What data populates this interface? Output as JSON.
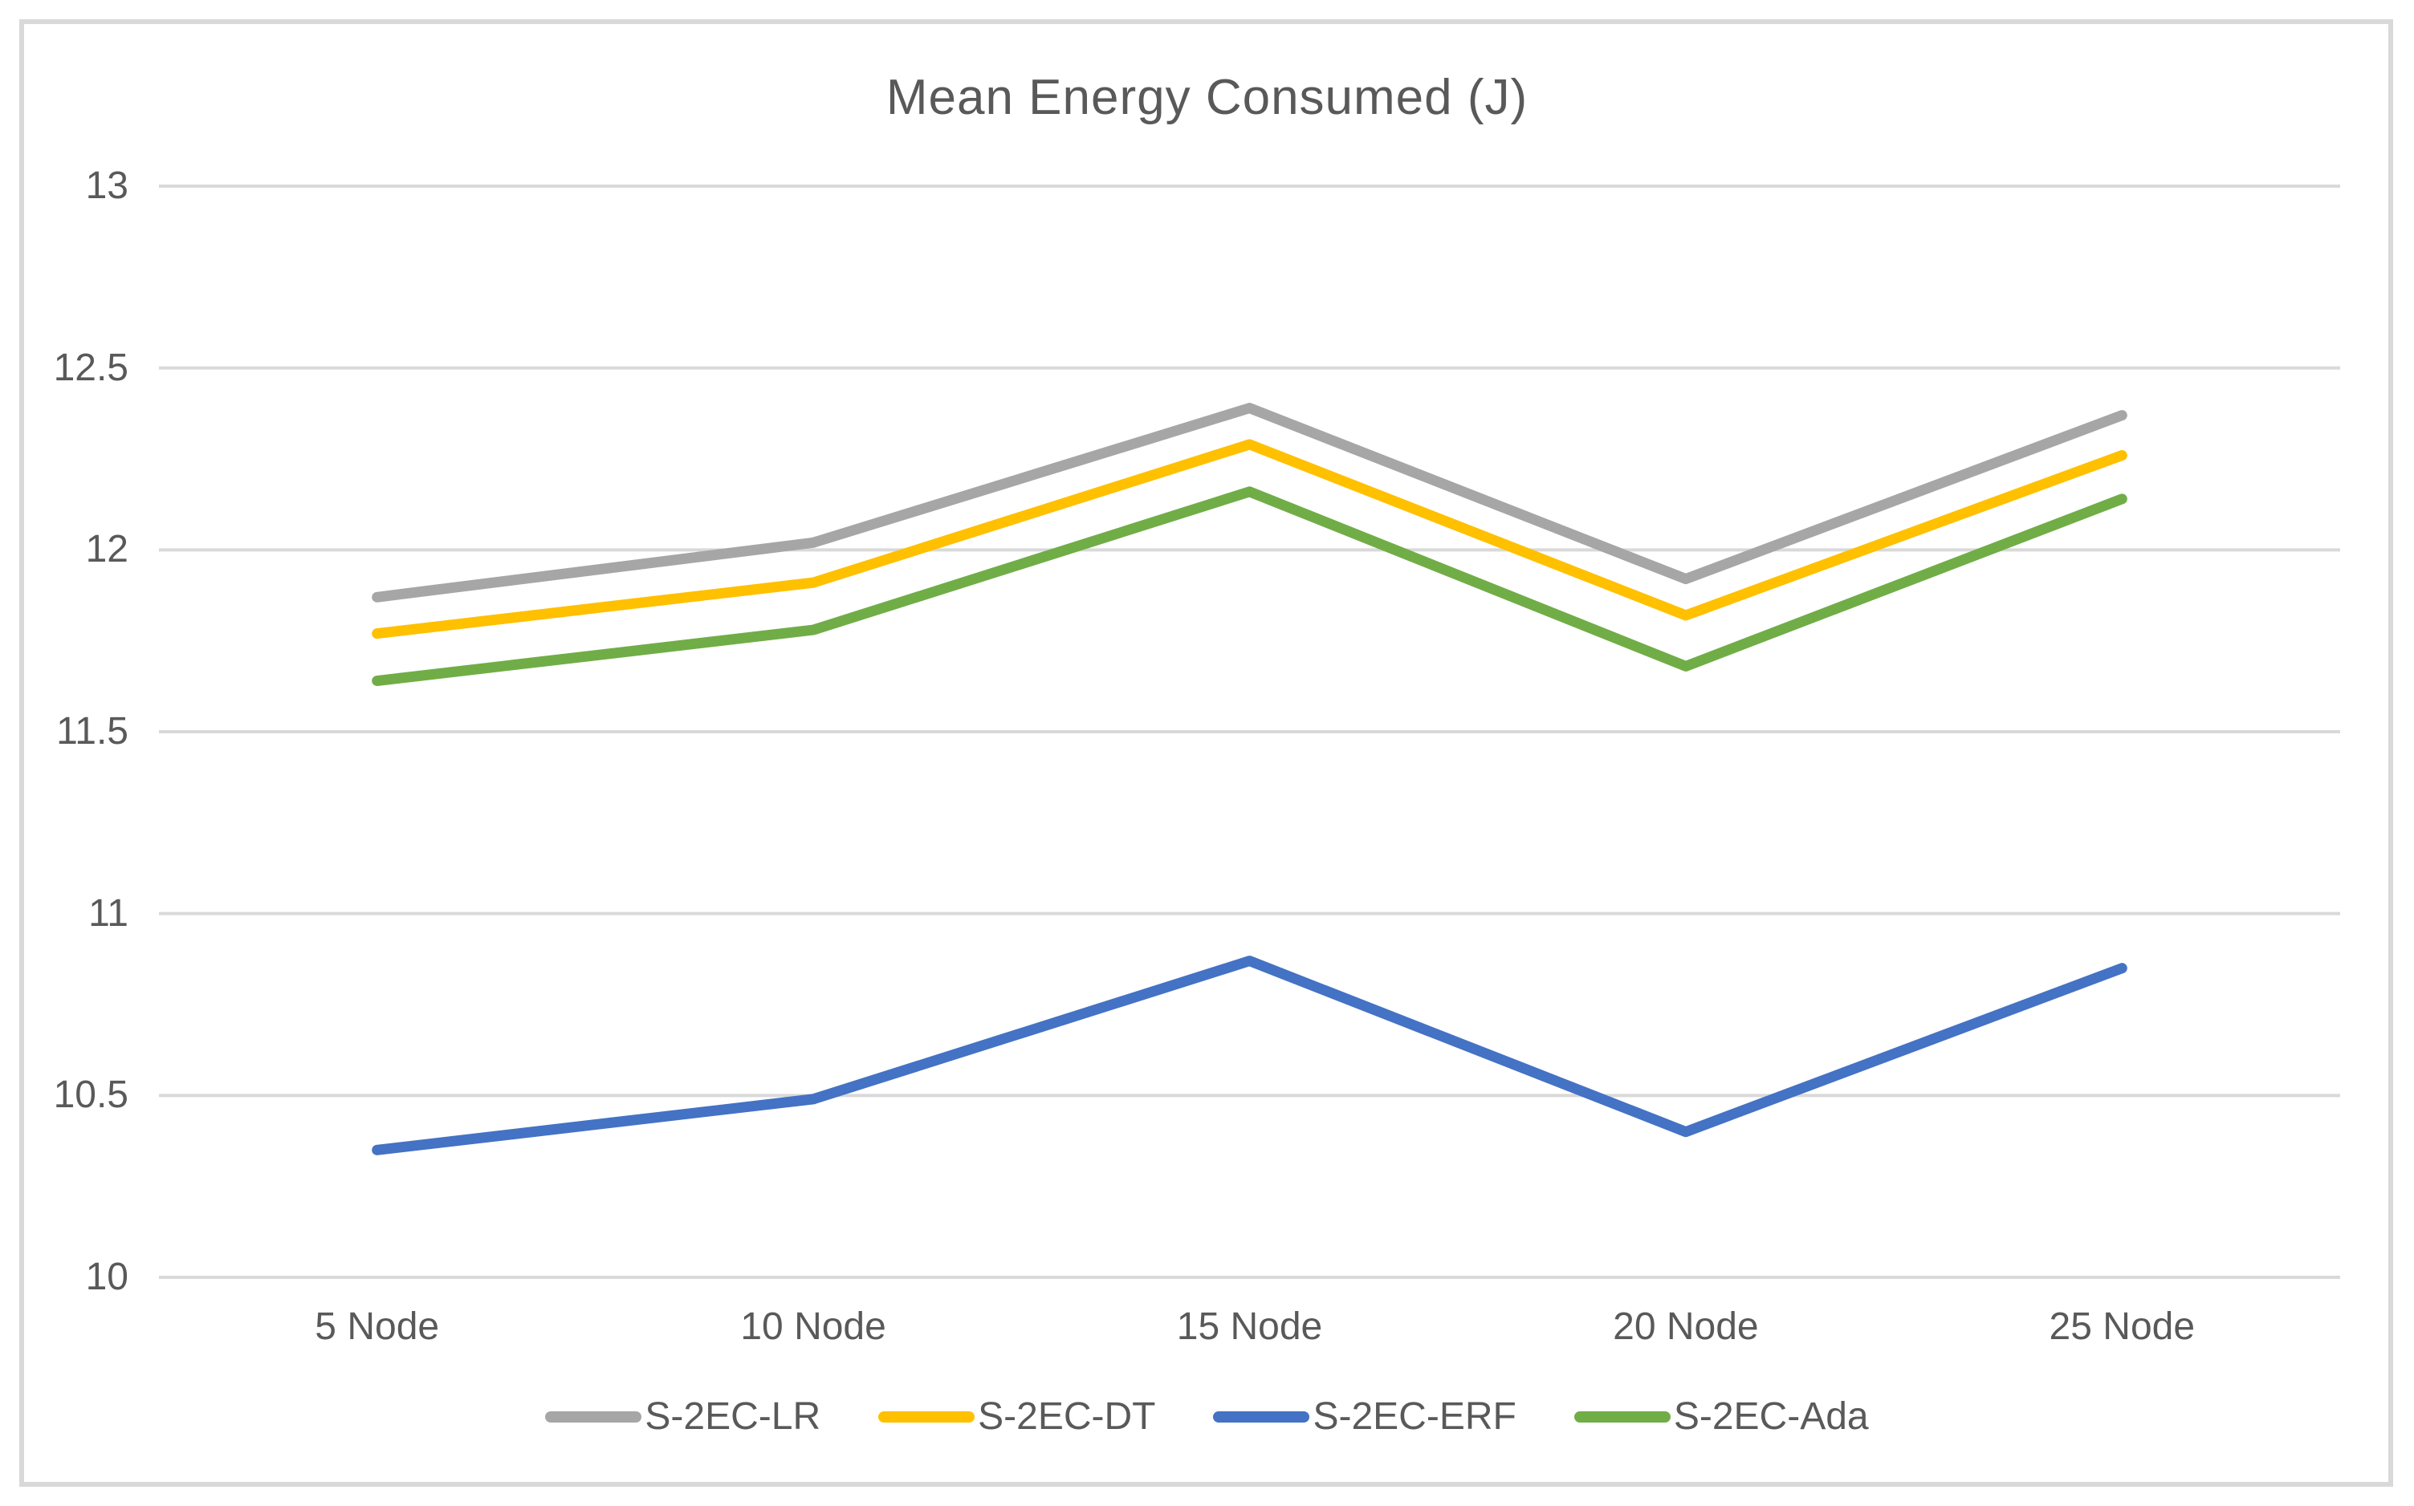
{
  "chart_data": {
    "type": "line",
    "title": "Mean Energy Consumed (J)",
    "categories": [
      "5 Node",
      "10 Node",
      "15 Node",
      "20 Node",
      "25 Node"
    ],
    "series": [
      {
        "name": "S-2EC-LR",
        "color": "#A6A6A6",
        "values": [
          11.87,
          12.02,
          12.39,
          11.92,
          12.37
        ]
      },
      {
        "name": "S-2EC-DT",
        "color": "#FFC000",
        "values": [
          11.77,
          11.91,
          12.29,
          11.82,
          12.26
        ]
      },
      {
        "name": "S-2EC-ERF",
        "color": "#4472C4",
        "values": [
          10.35,
          10.49,
          10.87,
          10.4,
          10.85
        ]
      },
      {
        "name": "S-2EC-Ada",
        "color": "#70AD47",
        "values": [
          11.64,
          11.78,
          12.16,
          11.68,
          12.14
        ]
      }
    ],
    "y_axis": {
      "min": 10,
      "max": 13,
      "step": 0.5,
      "tick_labels": [
        "10",
        "10.5",
        "11",
        "11.5",
        "12",
        "12.5",
        "13"
      ]
    },
    "x_axis_label": "",
    "y_axis_label": "",
    "grid": true,
    "legend_position": "bottom",
    "colors": {
      "gridline": "#D9D9D9",
      "frame_border": "#D9D9D9",
      "text": "#595959",
      "background": "#FFFFFF"
    }
  }
}
